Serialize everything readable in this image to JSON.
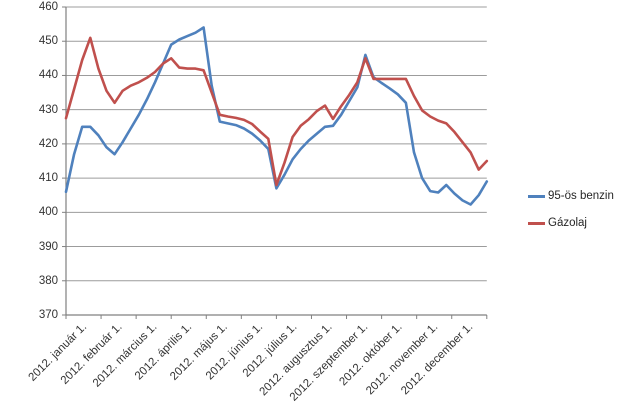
{
  "chart_data": {
    "type": "line",
    "title": "",
    "xlabel": "",
    "ylabel": "",
    "ylim": [
      370,
      460
    ],
    "y_ticks": [
      370,
      380,
      390,
      400,
      410,
      420,
      430,
      440,
      450,
      460
    ],
    "grid": "horizontal",
    "legend_position": "right",
    "points_per_series": 53,
    "x_unit": "weekly samples, 2012",
    "x_labels": [
      "2012. január 1.",
      "2012. február 1.",
      "2012. március 1.",
      "2012. április 1.",
      "2012. május 1.",
      "2012. június 1.",
      "2012. július 1.",
      "2012. augusztus 1.",
      "2012. szeptember 1.",
      "2012. október 1.",
      "2012. november 1.",
      "2012. december 1."
    ],
    "series": [
      {
        "name": "95-ös benzin",
        "color": "#4F81BD",
        "values": [
          406,
          417,
          425,
          425,
          422.5,
          419,
          417,
          420.5,
          424.5,
          428.5,
          433,
          438,
          443.5,
          449,
          450.5,
          451.5,
          452.5,
          454,
          437,
          426.5,
          426,
          425.5,
          424.5,
          423,
          421,
          418.5,
          407,
          411,
          415.5,
          418.5,
          421,
          423,
          425,
          425.3,
          428.5,
          432.5,
          436.5,
          446,
          439.5,
          437.8,
          436.2,
          434.5,
          432,
          417.5,
          410,
          406.2,
          405.8,
          408,
          405.5,
          403.5,
          402.3,
          405,
          409
        ]
      },
      {
        "name": "Gázolaj",
        "color": "#C0504D",
        "values": [
          427.5,
          436,
          444.5,
          451,
          442,
          435.5,
          432,
          435.5,
          437,
          438,
          439.3,
          441,
          443.5,
          445,
          442.3,
          442,
          442,
          441.5,
          435,
          428.5,
          428,
          427.6,
          427,
          425.8,
          423.6,
          421.5,
          408,
          414.5,
          422,
          425.3,
          427.2,
          429.6,
          431.2,
          427.3,
          431,
          434.3,
          438,
          445,
          439,
          439,
          439,
          439,
          439,
          434,
          429.8,
          428,
          426.8,
          426,
          423.5,
          420.5,
          417.5,
          412.5,
          415
        ]
      }
    ],
    "colors": {
      "gridline": "#9C9C9C",
      "axis": "#808080",
      "tick_label": "#333333",
      "background": "#FFFFFF"
    }
  }
}
